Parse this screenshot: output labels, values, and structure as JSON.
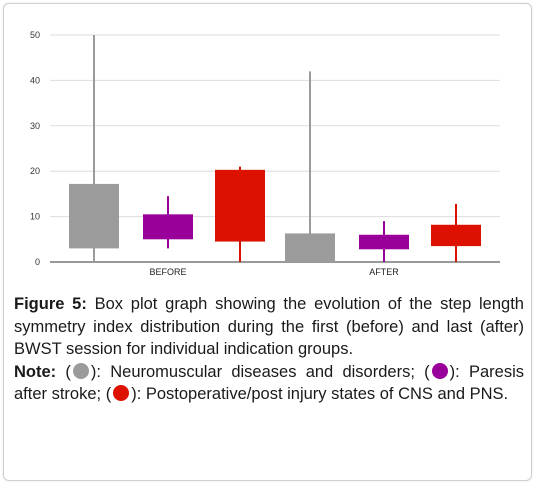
{
  "chart_data": {
    "type": "box",
    "categories": [
      "BEFORE",
      "AFTER"
    ],
    "ylim": [
      0,
      50
    ],
    "yticks": [
      0,
      10,
      20,
      30,
      40,
      50
    ],
    "grid": true,
    "series": [
      {
        "color": "#9b9b9b",
        "boxes": [
          {
            "category": "BEFORE",
            "whisker_low": 0,
            "q1": 3,
            "q3": 17.2,
            "whisker_high": 50
          },
          {
            "category": "AFTER",
            "whisker_low": 0,
            "q1": 0,
            "q3": 6.3,
            "whisker_high": 42
          }
        ]
      },
      {
        "color": "#990099",
        "boxes": [
          {
            "category": "BEFORE",
            "whisker_low": 3,
            "q1": 5,
            "q3": 10.5,
            "whisker_high": 14.5
          },
          {
            "category": "AFTER",
            "whisker_low": 0,
            "q1": 2.8,
            "q3": 6,
            "whisker_high": 9
          }
        ]
      },
      {
        "color": "#dd1100",
        "boxes": [
          {
            "category": "BEFORE",
            "whisker_low": 0,
            "q1": 4.5,
            "q3": 20.3,
            "whisker_high": 21
          },
          {
            "category": "AFTER",
            "whisker_low": 0,
            "q1": 3.5,
            "q3": 8.2,
            "whisker_high": 12.8
          }
        ]
      }
    ]
  },
  "caption": {
    "label": "Figure 5:",
    "text": " Box plot graph showing the evolution of the step length symmetry index distribution during the first (before) and last (after) BWST session for individual indication groups.",
    "note_label": "Note:",
    "note_open": " (",
    "note_1": "): Neuromuscular diseases and disorders; (",
    "note_2": "): Paresis after stroke; (",
    "note_3": "): Postoperative/post injury states of CNS and PNS."
  },
  "legend_colors": {
    "gray": "#9b9b9b",
    "purple": "#990099",
    "red": "#dd1100"
  }
}
